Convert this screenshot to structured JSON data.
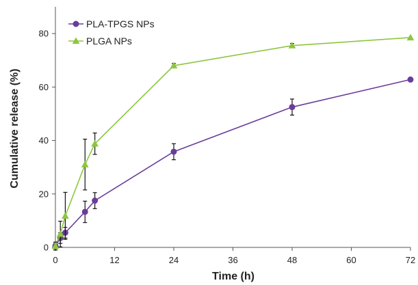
{
  "chart_data": {
    "type": "line",
    "xlabel": "Time (h)",
    "ylabel": "Cumulative release (%)",
    "xlim": [
      0,
      72
    ],
    "ylim": [
      0,
      90
    ],
    "xticks": [
      0,
      12,
      24,
      36,
      48,
      60,
      72
    ],
    "yticks": [
      0,
      20,
      40,
      60,
      80
    ],
    "grid": false,
    "legend_position": "top-left",
    "series": [
      {
        "name": "PLA-TPGS NPs",
        "color": "#6a3d9a",
        "marker": "circle",
        "x": [
          0,
          1,
          2,
          6,
          8,
          24,
          48,
          72
        ],
        "y": [
          0.5,
          3.5,
          5.5,
          13.3,
          17.5,
          35.8,
          52.5,
          62.8
        ],
        "error": [
          1.0,
          2.0,
          2.0,
          4.0,
          3.0,
          3.0,
          3.0,
          0.0
        ]
      },
      {
        "name": "PLGA NPs",
        "color": "#8dc63f",
        "marker": "triangle",
        "x": [
          0,
          1,
          2,
          6,
          8,
          24,
          48,
          72
        ],
        "y": [
          0.5,
          5.0,
          11.8,
          31.0,
          38.8,
          68.0,
          75.5,
          78.5
        ],
        "error": [
          1.5,
          4.8,
          8.8,
          9.5,
          4.0,
          0.8,
          0.8,
          0.0
        ]
      }
    ]
  }
}
